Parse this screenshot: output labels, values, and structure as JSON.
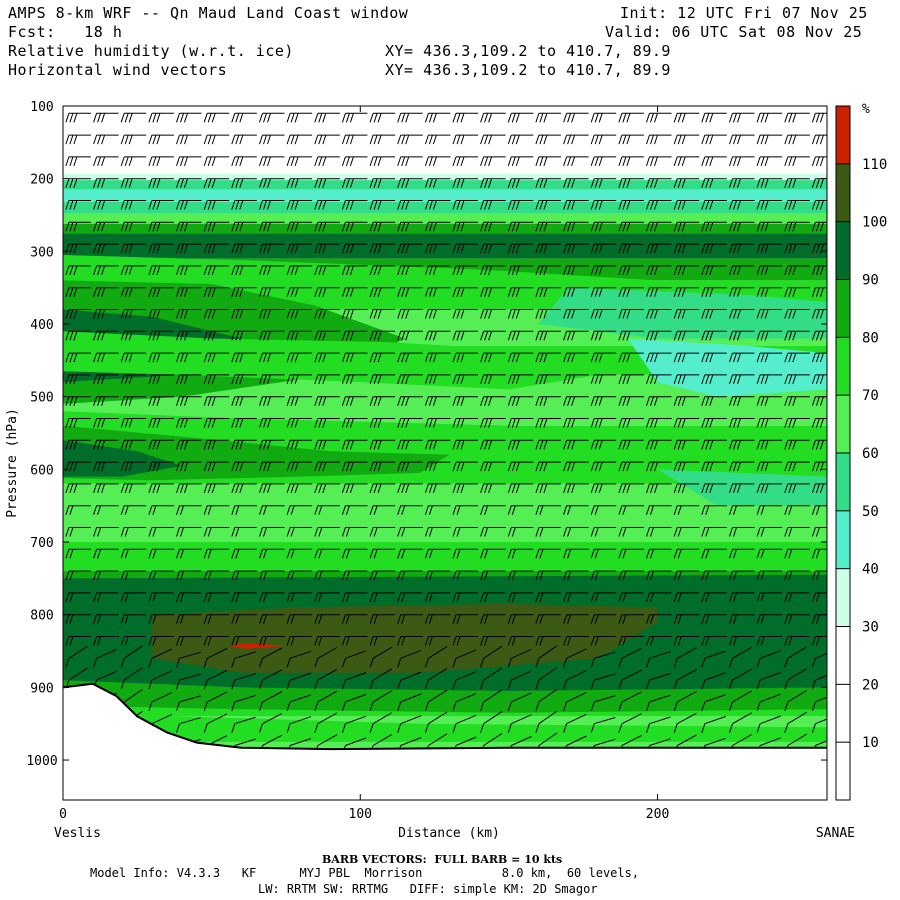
{
  "header": {
    "title": "AMPS 8-km WRF -- Qn Maud Land Coast window",
    "init": "Init: 12 UTC Fri 07 Nov 25",
    "fcst": "Fcst:   18 h",
    "valid": "Valid: 06 UTC Sat 08 Nov 25",
    "field1": "Relative humidity (w.r.t. ice)",
    "field1_xy": "XY= 436.3,109.2 to 410.7, 89.9",
    "field2": "Horizontal wind vectors",
    "field2_xy": "XY= 436.3,109.2 to 410.7, 89.9"
  },
  "footer": {
    "barb_note": "BARB VECTORS:  FULL BARB = 10 kts",
    "model_line1": "Model Info: V4.3.3   KF      MYJ PBL  Morrison           8.0 km,  60 levels,",
    "model_line2": "LW: RRTM SW: RRTMG   DIFF: simple KM: 2D Smagor"
  },
  "chart_data": {
    "type": "heatmap",
    "title": "Relative humidity (w.r.t. ice) cross-section with horizontal wind barbs",
    "xlabel": "Distance (km)",
    "ylabel": "Pressure (hPa)",
    "xlim": [
      0,
      257
    ],
    "ylim": [
      1055,
      100
    ],
    "x_ticks": [
      0,
      100,
      200
    ],
    "y_ticks": [
      100,
      200,
      300,
      400,
      500,
      600,
      700,
      800,
      900,
      1000
    ],
    "start_label": "Veslis",
    "end_label": "SANAE",
    "colorbar": {
      "unit": "%",
      "ticks": [
        10,
        20,
        30,
        40,
        50,
        60,
        70,
        80,
        90,
        100,
        110
      ],
      "levels": [
        {
          "range": [
            0,
            30
          ],
          "color": "#ffffff"
        },
        {
          "range": [
            30,
            40
          ],
          "color": "#ccffe6"
        },
        {
          "range": [
            40,
            50
          ],
          "color": "#55eecc"
        },
        {
          "range": [
            50,
            60
          ],
          "color": "#33dd88"
        },
        {
          "range": [
            60,
            70
          ],
          "color": "#55ee55"
        },
        {
          "range": [
            70,
            80
          ],
          "color": "#22dd22"
        },
        {
          "range": [
            80,
            90
          ],
          "color": "#11aa11"
        },
        {
          "range": [
            90,
            100
          ],
          "color": "#006e2a"
        },
        {
          "range": [
            100,
            110
          ],
          "color": "#3d5a14"
        },
        {
          "range": [
            110,
            120
          ],
          "color": "#cc2200"
        }
      ]
    },
    "rh_layers": [
      {
        "p": [
          100,
          195
        ],
        "rh": "<30"
      },
      {
        "p": [
          195,
          250
        ],
        "rh": "30-60"
      },
      {
        "p": [
          250,
          310
        ],
        "rh": "80-100"
      },
      {
        "p": [
          310,
          700
        ],
        "rh": "40-90, drier east of 200 km"
      },
      {
        "p": [
          700,
          760
        ],
        "rh": "70-80"
      },
      {
        "p": [
          760,
          900
        ],
        "rh": "90-110, max >110 near 60 km at 845 hPa"
      },
      {
        "p": [
          900,
          990
        ],
        "rh": "60-90 near surface"
      }
    ],
    "terrain_surface": [
      {
        "x": 0,
        "p": 900
      },
      {
        "x": 10,
        "p": 895
      },
      {
        "x": 18,
        "p": 912
      },
      {
        "x": 25,
        "p": 940
      },
      {
        "x": 35,
        "p": 962
      },
      {
        "x": 45,
        "p": 976
      },
      {
        "x": 60,
        "p": 983
      },
      {
        "x": 90,
        "p": 985
      },
      {
        "x": 150,
        "p": 983
      },
      {
        "x": 200,
        "p": 983
      },
      {
        "x": 257,
        "p": 983
      }
    ],
    "wind_barbs": {
      "upper_levels_kts": 30,
      "mid_levels_kts": 20,
      "low_levels_kts": 15,
      "direction": "westerly aloft, backing to easterly/southeasterly near surface"
    }
  }
}
